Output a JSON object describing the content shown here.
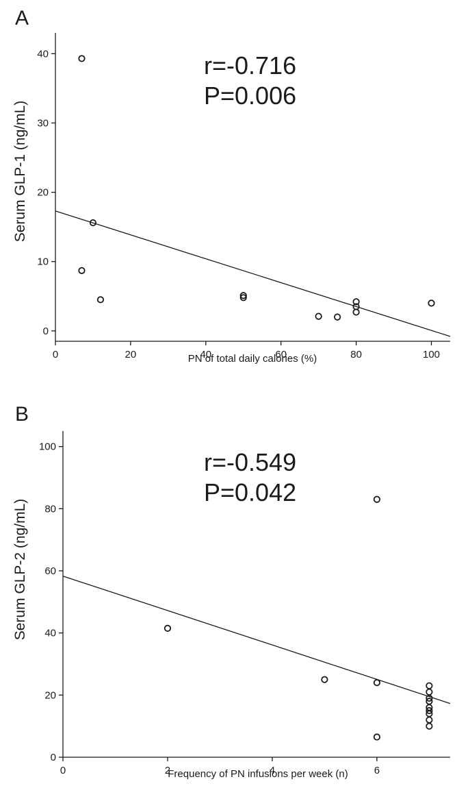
{
  "chart_data": [
    {
      "type": "scatter",
      "panel_label": "A",
      "xlabel": "PN of total daily calories (%)",
      "ylabel": "Serum GLP-1 (ng/mL)",
      "xlim": [
        0,
        105
      ],
      "ylim": [
        -1.5,
        43
      ],
      "xticks": [
        0,
        20,
        40,
        60,
        80,
        100
      ],
      "yticks": [
        0,
        10,
        20,
        30,
        40
      ],
      "points": [
        {
          "x": 7,
          "y": 39.3
        },
        {
          "x": 10,
          "y": 15.6
        },
        {
          "x": 7,
          "y": 8.7
        },
        {
          "x": 12,
          "y": 4.5
        },
        {
          "x": 50,
          "y": 5.1
        },
        {
          "x": 50,
          "y": 4.8
        },
        {
          "x": 70,
          "y": 2.1
        },
        {
          "x": 75,
          "y": 2.0
        },
        {
          "x": 80,
          "y": 4.2
        },
        {
          "x": 80,
          "y": 3.5
        },
        {
          "x": 80,
          "y": 2.7
        },
        {
          "x": 100,
          "y": 4.0
        }
      ],
      "fit_line": {
        "x1": 0,
        "y1": 17.3,
        "x2": 105,
        "y2": -0.8
      },
      "stats": {
        "r": "r=-0.716",
        "p": "P=0.006"
      }
    },
    {
      "type": "scatter",
      "panel_label": "B",
      "xlabel": "Frequency of PN infusions per week (n)",
      "ylabel": "Serum GLP-2 (ng/mL)",
      "xlim": [
        0,
        7.4
      ],
      "ylim": [
        0,
        105
      ],
      "xticks": [
        0,
        2,
        4,
        6
      ],
      "yticks": [
        0,
        20,
        40,
        60,
        80,
        100
      ],
      "points": [
        {
          "x": 2,
          "y": 41.5
        },
        {
          "x": 5,
          "y": 25
        },
        {
          "x": 6,
          "y": 83
        },
        {
          "x": 6,
          "y": 24
        },
        {
          "x": 6,
          "y": 6.5
        },
        {
          "x": 7,
          "y": 23
        },
        {
          "x": 7,
          "y": 21
        },
        {
          "x": 7,
          "y": 19
        },
        {
          "x": 7,
          "y": 18
        },
        {
          "x": 7,
          "y": 16
        },
        {
          "x": 7,
          "y": 15
        },
        {
          "x": 7,
          "y": 14
        },
        {
          "x": 7,
          "y": 12
        },
        {
          "x": 7,
          "y": 10
        }
      ],
      "fit_line": {
        "x1": 0,
        "y1": 58.3,
        "x2": 7.4,
        "y2": 17.3
      },
      "stats": {
        "r": "r=-0.549",
        "p": "P=0.042"
      }
    }
  ]
}
